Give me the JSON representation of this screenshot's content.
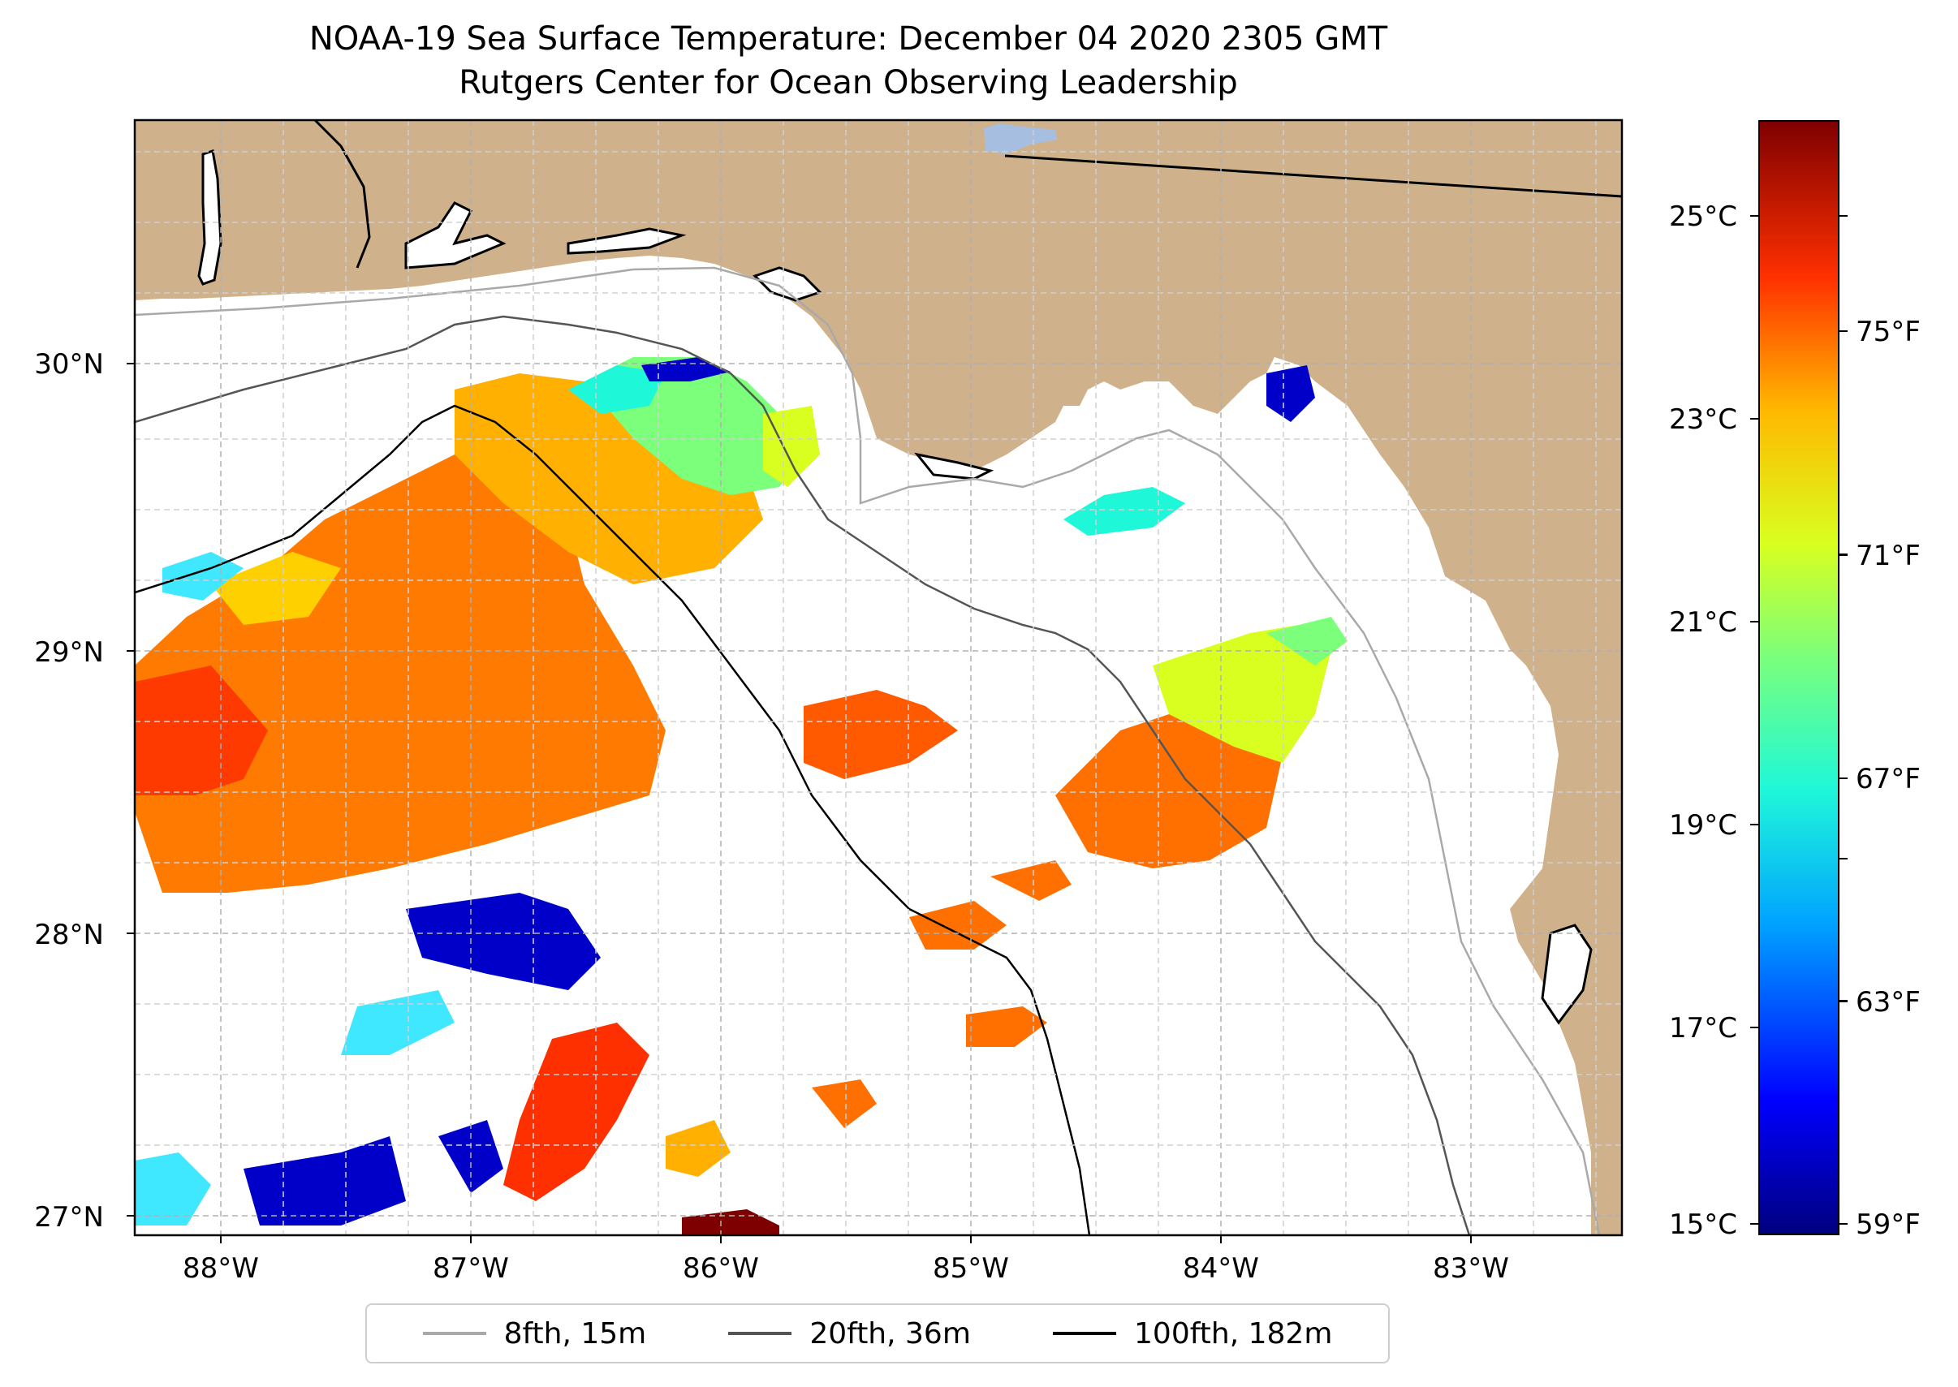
{
  "title": {
    "line1": "NOAA-19 Sea Surface Temperature: December 04 2020 2305 GMT",
    "line2": "Rutgers Center for Ocean Observing Leadership"
  },
  "map": {
    "extent": {
      "lon_min": -88.35,
      "lon_max": -82.4,
      "lat_min": 26.95,
      "lat_max": 30.85
    },
    "lat_ticks": [
      "27°N",
      "28°N",
      "29°N",
      "30°N"
    ],
    "lon_ticks": [
      "88°W",
      "87°W",
      "86°W",
      "85°W",
      "84°W",
      "83°W"
    ],
    "land_color": "#cfb28b",
    "water_color": "#a6bfe0",
    "gridlines": true
  },
  "legend": {
    "placement": "bottom-center",
    "items": [
      {
        "label": "8fth, 15m",
        "color": "#a9a9a9"
      },
      {
        "label": "20fth, 36m",
        "color": "#555555"
      },
      {
        "label": "100fth, 182m",
        "color": "#000000"
      }
    ]
  },
  "colorbar": {
    "colormap": "jet",
    "celsius_ticks": [
      "25°C",
      "23°C",
      "21°C",
      "19°C",
      "17°C",
      "15°C"
    ],
    "fahrenheit_ticks": [
      "75°F",
      "71°F",
      "67°F",
      "63°F",
      "59°F"
    ],
    "range_c": [
      14.9,
      26.0
    ]
  }
}
